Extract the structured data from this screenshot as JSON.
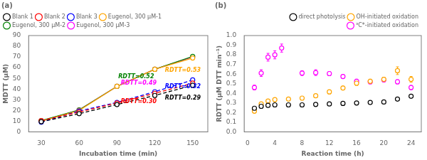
{
  "chart_data": [
    {
      "type": "line",
      "title": "(a)",
      "xlabel": "Incubation time (min)",
      "ylabel": "MDTT (μM)",
      "x": [
        30,
        60,
        90,
        120,
        150
      ],
      "series": [
        {
          "name": "Blank 1",
          "color": "#000000",
          "line_style": "dashed",
          "marker": "circle",
          "values": [
            9.5,
            17.0,
            25.5,
            34.0,
            43.5
          ]
        },
        {
          "name": "Blank 2",
          "color": "#ff0000",
          "line_style": "dashed",
          "marker": "circle",
          "values": [
            10.5,
            18.5,
            27.0,
            36.0,
            45.5
          ]
        },
        {
          "name": "Blank 3",
          "color": "#0000ff",
          "line_style": "dashed",
          "marker": "circle",
          "values": [
            9.0,
            19.5,
            27.5,
            37.5,
            48.5
          ]
        },
        {
          "name": "Eugenol, 300 μM-1",
          "color": "#ffa500",
          "line_style": "solid",
          "marker": "circle",
          "values": [
            10.0,
            20.0,
            42.5,
            58.5,
            69.0
          ]
        },
        {
          "name": "Eugenol, 300 μM-2",
          "color": "#008000",
          "line_style": "solid",
          "marker": "circle",
          "values": [
            10.5,
            20.5,
            42.5,
            58.5,
            70.5
          ]
        },
        {
          "name": "Eugenol, 300 μM-3",
          "color": "#ff00ff",
          "line_style": "solid",
          "marker": "circle",
          "values": [
            10.0,
            20.5,
            42.5,
            58.5,
            70.0
          ]
        }
      ],
      "annotations": [
        {
          "text": "RDTT=0.52",
          "x": 91,
          "y": 50,
          "color": "#008000"
        },
        {
          "text": "RDTT=0.53",
          "x": 128,
          "y": 56,
          "color": "#ffa500"
        },
        {
          "text": "RDTT=0.49",
          "x": 93,
          "y": 44,
          "color": "#ff00ff"
        },
        {
          "text": "RDTT=0.32",
          "x": 128,
          "y": 41,
          "color": "#0000ff"
        },
        {
          "text": "RDTT=0.30",
          "x": 93,
          "y": 27,
          "color": "#ff0000"
        },
        {
          "text": "RDTT=0.29",
          "x": 128,
          "y": 30,
          "color": "#000000"
        }
      ],
      "xlim": [
        20,
        162
      ],
      "xticks": [
        30,
        60,
        90,
        120,
        150
      ],
      "ylim": [
        0,
        90
      ],
      "yticks": [
        0,
        10,
        20,
        30,
        40,
        50,
        60,
        70,
        80,
        90
      ],
      "grid": false,
      "legend": "upper left"
    },
    {
      "type": "scatter",
      "title": "(b)",
      "xlabel": "Reaction time (h)",
      "ylabel": "RDTT (μM DTT min⁻¹)",
      "series": [
        {
          "name": "direct photolysis",
          "color": "#000000",
          "marker": "circle",
          "x": [
            1,
            2,
            3,
            4,
            6,
            8,
            10,
            12,
            14,
            16,
            18,
            20,
            22,
            24
          ],
          "values": [
            0.245,
            0.265,
            0.275,
            0.28,
            0.28,
            0.28,
            0.285,
            0.29,
            0.295,
            0.3,
            0.305,
            0.31,
            0.34,
            0.37
          ],
          "yerr": [
            0.01,
            0.01,
            0.01,
            0.01,
            0.01,
            0.01,
            0.01,
            0.01,
            0.01,
            0.01,
            0.01,
            0.01,
            0.012,
            0.012
          ]
        },
        {
          "name": "OH-initiated oxidation",
          "color": "#ffa500",
          "marker": "circle",
          "x": [
            1,
            2,
            3,
            4,
            6,
            8,
            10,
            12,
            14,
            16,
            18,
            20,
            22,
            24
          ],
          "values": [
            0.215,
            0.29,
            0.32,
            0.335,
            0.34,
            0.35,
            0.375,
            0.415,
            0.455,
            0.505,
            0.525,
            0.545,
            0.635,
            0.545
          ],
          "yerr": [
            0.012,
            0.012,
            0.012,
            0.012,
            0.012,
            0.012,
            0.015,
            0.02,
            0.02,
            0.022,
            0.022,
            0.022,
            0.04,
            0.03
          ]
        },
        {
          "name": "³C*-initiated oxidation",
          "color": "#ff00ff",
          "marker": "circle",
          "x": [
            1,
            2,
            3,
            4,
            5,
            8,
            10,
            12,
            14,
            16,
            18,
            20,
            22,
            24
          ],
          "values": [
            0.46,
            0.61,
            0.775,
            0.8,
            0.87,
            0.61,
            0.615,
            0.605,
            0.575,
            0.525,
            0.52,
            0.54,
            0.52,
            0.46
          ],
          "yerr": [
            0.025,
            0.035,
            0.04,
            0.042,
            0.042,
            0.025,
            0.03,
            0.022,
            0.022,
            0.022,
            0.022,
            0.022,
            0.022,
            0.022
          ]
        }
      ],
      "xlim": [
        -0.5,
        25.5
      ],
      "xticks": [
        0,
        4,
        8,
        12,
        16,
        20,
        24
      ],
      "ylim": [
        0.0,
        1.0
      ],
      "yticks": [
        {
          "value": 0,
          "label": "0.0"
        },
        0.1,
        0.2,
        0.3,
        0.4,
        0.5,
        0.6,
        0.7,
        0.8,
        0.9,
        {
          "value": 1,
          "label": "1.0"
        }
      ],
      "grid": false,
      "legend": "upper right"
    }
  ]
}
